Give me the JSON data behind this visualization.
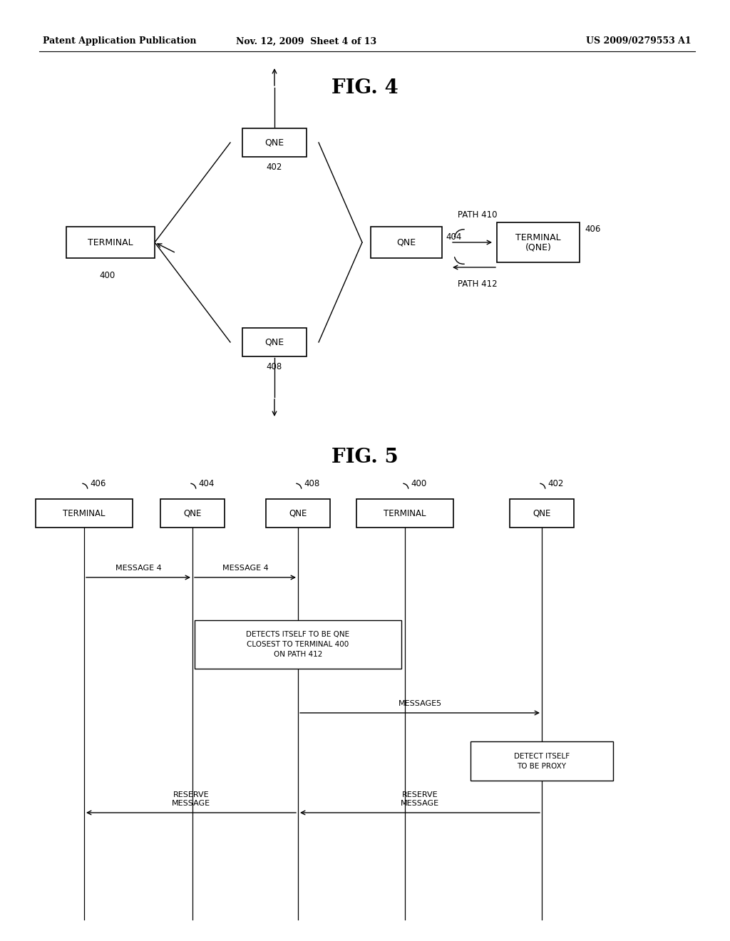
{
  "header_left": "Patent Application Publication",
  "header_mid": "Nov. 12, 2009  Sheet 4 of 13",
  "header_right": "US 2009/0279553 A1",
  "fig4_title": "FIG. 4",
  "fig5_title": "FIG. 5",
  "bg_color": "#ffffff",
  "path410_label": "PATH 410",
  "path412_label": "PATH 412",
  "message4_label": "MESSAGE 4",
  "message4b_label": "MESSAGE 4",
  "message5_label": "MESSAGE5",
  "reserve1_label": "RESERVE\nMESSAGE",
  "reserve2_label": "RESERVE\nMESSAGE",
  "detect1_label": "DETECTS ITSELF TO BE QNE\nCLOSEST TO TERMINAL 400\nON PATH 412",
  "detect2_label": "DETECT ITSELF\nTO BE PROXY"
}
